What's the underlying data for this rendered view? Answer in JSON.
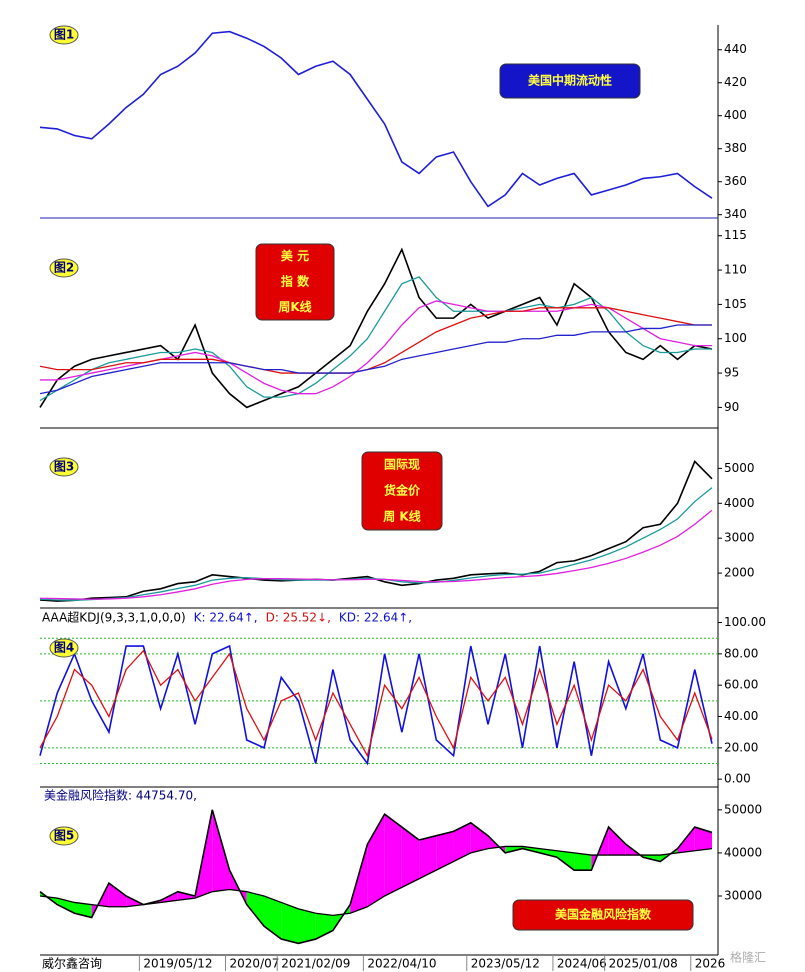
{
  "chart_data": [
    {
      "type": "line",
      "label": "图1",
      "annotation": [
        "美国中期流动性"
      ],
      "annotation_color": "#1414c8",
      "annotation_text_color": "#ffff40",
      "ylim": [
        338,
        455
      ],
      "yticks": [
        340,
        360,
        380,
        400,
        420,
        440
      ],
      "series": [
        {
          "color": "#1e1ed8",
          "values": [
            393,
            392,
            388,
            386,
            395,
            405,
            413,
            425,
            430,
            438,
            450,
            451,
            447,
            442,
            435,
            425,
            430,
            433,
            425,
            410,
            395,
            372,
            365,
            375,
            378,
            360,
            345,
            352,
            365,
            358,
            362,
            365,
            352,
            355,
            358,
            362,
            363,
            365,
            357,
            350
          ]
        }
      ]
    },
    {
      "type": "line",
      "label": "图2",
      "annotation": [
        "美 元",
        "指 数",
        "周K线"
      ],
      "annotation_color": "#e00000",
      "annotation_text_color": "#ffff40",
      "ylim": [
        87,
        117
      ],
      "yticks": [
        90,
        95,
        100,
        105,
        110,
        115
      ],
      "series": [
        {
          "color": "#000000",
          "values": [
            90,
            94,
            96,
            97,
            97.5,
            98,
            98.5,
            99,
            97,
            102,
            95,
            92,
            90,
            91,
            92,
            93,
            95,
            97,
            99,
            104,
            108,
            113,
            106,
            103,
            103,
            105,
            103,
            104,
            105,
            106,
            102,
            108,
            106,
            101,
            98,
            97,
            99,
            97,
            99,
            98.5
          ]
        },
        {
          "color": "#1a9a9a",
          "values": [
            91,
            92.5,
            94,
            95.5,
            96.5,
            97,
            97.5,
            98,
            98,
            98.5,
            98,
            96,
            93,
            91.5,
            91.5,
            92,
            93.5,
            95.5,
            97.5,
            100,
            104,
            108,
            109,
            106,
            104,
            104,
            104,
            104,
            104.5,
            105,
            104.5,
            105,
            106,
            104,
            101,
            99,
            98,
            98,
            98.5,
            98.5
          ]
        },
        {
          "color": "#e020e0",
          "values": [
            94,
            94,
            94.5,
            95,
            95.5,
            96,
            96.5,
            97,
            97.5,
            98,
            97.5,
            96.5,
            95,
            93.5,
            92.5,
            92,
            92,
            93,
            94.5,
            96.5,
            99,
            102,
            104.5,
            105.5,
            105,
            104.5,
            104,
            104,
            104,
            104,
            104,
            104.5,
            105,
            104.5,
            103,
            101.5,
            100,
            99.5,
            99,
            99
          ]
        },
        {
          "color": "#dd1111",
          "values": [
            96,
            95.5,
            95.5,
            95.5,
            96,
            96.5,
            96.5,
            97,
            97,
            97,
            97,
            96.5,
            96,
            95.5,
            95,
            95,
            95,
            95,
            95,
            95.5,
            96.5,
            98,
            99.5,
            101,
            102,
            103,
            103.5,
            104,
            104,
            104.5,
            104.5,
            104.5,
            104.5,
            104.5,
            104,
            103.5,
            103,
            102.5,
            102,
            102
          ]
        },
        {
          "color": "#2222cc",
          "values": [
            92,
            92.5,
            93.5,
            94.5,
            95,
            95.5,
            96,
            96.5,
            96.5,
            96.5,
            96.5,
            96.5,
            96,
            95.5,
            95.5,
            95,
            95,
            95,
            95,
            95.5,
            96,
            97,
            97.5,
            98,
            98.5,
            99,
            99.5,
            99.5,
            100,
            100,
            100.5,
            100.5,
            101,
            101,
            101,
            101.5,
            101.5,
            102,
            102,
            102
          ]
        }
      ]
    },
    {
      "type": "line",
      "label": "图3",
      "annotation": [
        "国际现",
        "货金价",
        "周 K线"
      ],
      "annotation_color": "#e00000",
      "annotation_text_color": "#ffff40",
      "ylim": [
        1000,
        6100
      ],
      "yticks": [
        2000,
        3000,
        4000,
        5000
      ],
      "series": [
        {
          "color": "#000000",
          "values": [
            1230,
            1200,
            1220,
            1280,
            1300,
            1320,
            1480,
            1550,
            1700,
            1750,
            1950,
            1900,
            1850,
            1800,
            1780,
            1800,
            1820,
            1800,
            1850,
            1900,
            1750,
            1650,
            1700,
            1800,
            1850,
            1950,
            1980,
            2000,
            1950,
            2050,
            2300,
            2350,
            2500,
            2700,
            2900,
            3300,
            3400,
            4000,
            5200,
            4700
          ]
        },
        {
          "color": "#1a9a9a",
          "values": [
            1250,
            1230,
            1220,
            1240,
            1270,
            1300,
            1380,
            1460,
            1560,
            1650,
            1800,
            1850,
            1870,
            1840,
            1810,
            1800,
            1800,
            1800,
            1820,
            1850,
            1820,
            1750,
            1720,
            1740,
            1790,
            1860,
            1920,
            1960,
            1970,
            2000,
            2120,
            2250,
            2380,
            2550,
            2750,
            3000,
            3250,
            3550,
            4050,
            4450
          ]
        },
        {
          "color": "#e020e0",
          "values": [
            1280,
            1270,
            1260,
            1250,
            1260,
            1280,
            1320,
            1380,
            1460,
            1550,
            1680,
            1770,
            1820,
            1840,
            1840,
            1830,
            1820,
            1810,
            1810,
            1820,
            1820,
            1790,
            1760,
            1750,
            1760,
            1790,
            1830,
            1870,
            1900,
            1930,
            1990,
            2070,
            2160,
            2280,
            2420,
            2600,
            2800,
            3050,
            3400,
            3800
          ]
        }
      ]
    },
    {
      "type": "line",
      "label": "图4",
      "header": [
        {
          "text": "AAA超KDJ(9,3,3,1,0,0,0)",
          "color": "#000000"
        },
        {
          "text": "K: 22.64↑,",
          "color": "#1010d0"
        },
        {
          "text": "D: 25.52↓,",
          "color": "#d01010"
        },
        {
          "text": "KD: 22.64↑,",
          "color": "#1010d0"
        }
      ],
      "ylim": [
        -5,
        108
      ],
      "yticks": [
        {
          "value": 0,
          "label": "0.00"
        },
        {
          "value": 20,
          "label": "20.00"
        },
        {
          "value": 40,
          "label": "40.00"
        },
        {
          "value": 60,
          "label": "60.00"
        },
        {
          "value": 80,
          "label": "80.00"
        },
        {
          "value": 100,
          "label": "100.00"
        }
      ],
      "reference_lines": [
        10,
        20,
        50,
        80,
        90
      ],
      "reference_color": "#20c020",
      "series": [
        {
          "color": "#1010e0",
          "values": [
            15,
            55,
            80,
            50,
            30,
            85,
            85,
            45,
            80,
            35,
            80,
            85,
            25,
            20,
            65,
            50,
            10,
            70,
            25,
            10,
            80,
            30,
            80,
            25,
            15,
            85,
            35,
            80,
            20,
            85,
            20,
            75,
            15,
            75,
            45,
            80,
            25,
            20,
            70,
            22.64
          ]
        },
        {
          "color": "#e01010",
          "values": [
            20,
            40,
            70,
            60,
            40,
            70,
            82,
            60,
            70,
            50,
            65,
            80,
            45,
            25,
            50,
            55,
            25,
            55,
            35,
            15,
            60,
            45,
            65,
            40,
            20,
            65,
            50,
            65,
            35,
            70,
            35,
            60,
            25,
            60,
            50,
            70,
            40,
            25,
            55,
            25.52
          ]
        }
      ]
    },
    {
      "type": "line",
      "label": "图5",
      "title": "美金融风险指数: 44754.70,",
      "annotation": [
        "美国金融风险指数"
      ],
      "annotation_color": "#e00000",
      "annotation_text_color": "#ffff40",
      "ylim": [
        16300,
        55300
      ],
      "yticks": [
        30000,
        40000,
        50000
      ],
      "fill_between": {
        "above": "#ff00ff",
        "below": "#00ff00"
      },
      "categories": [
        null,
        null,
        null,
        null,
        null,
        null,
        "2019/05/12",
        null,
        null,
        null,
        null,
        "2020/07",
        null,
        null,
        "2021/02/09",
        null,
        null,
        null,
        null,
        "2022/04/10",
        null,
        null,
        null,
        null,
        null,
        "2023/05/12",
        null,
        null,
        null,
        null,
        "2024/06",
        null,
        null,
        "2025/01/08",
        null,
        null,
        null,
        null,
        "2026",
        null
      ],
      "series": [
        {
          "color": "#000000",
          "values": [
            31000,
            28000,
            26000,
            25000,
            33000,
            30000,
            28000,
            29000,
            31000,
            30000,
            50000,
            36000,
            28000,
            23000,
            20000,
            19000,
            20000,
            22000,
            28000,
            42000,
            49000,
            46000,
            43000,
            44000,
            45000,
            47000,
            44000,
            40000,
            41000,
            40000,
            39000,
            36000,
            36000,
            46000,
            42000,
            39000,
            38000,
            41000,
            46000,
            44754.7
          ]
        },
        {
          "color": "#000000",
          "values": [
            30000,
            29500,
            28500,
            28000,
            27500,
            27500,
            28000,
            28500,
            29000,
            29500,
            31000,
            31500,
            31000,
            30000,
            28500,
            27000,
            26000,
            25500,
            26000,
            27500,
            30000,
            32000,
            34000,
            36000,
            38000,
            40000,
            41000,
            41500,
            41500,
            41000,
            40500,
            40000,
            39500,
            39500,
            39500,
            39500,
            39500,
            40000,
            40500,
            41000
          ]
        }
      ]
    }
  ],
  "footer": "威尔鑫咨询",
  "watermark": "格隆汇"
}
